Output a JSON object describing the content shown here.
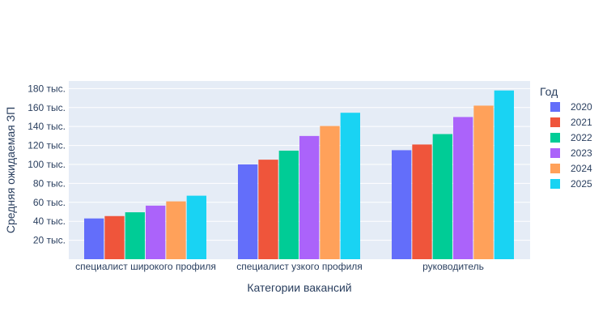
{
  "chart_data": {
    "type": "bar",
    "xlabel": "Категории вакансий",
    "ylabel": "Средняя ожидаемая ЗП",
    "categories": [
      "специалист широкого профиля",
      "специалист узкого профиля",
      "руководитель"
    ],
    "ylim": [
      0,
      188000
    ],
    "yticks": [
      20000,
      40000,
      60000,
      80000,
      100000,
      120000,
      140000,
      160000,
      180000
    ],
    "ytick_labels": [
      "20 тыс.",
      "40 тыс.",
      "60 тыс.",
      "80 тыс.",
      "100 тыс.",
      "120 тыс.",
      "140 тыс.",
      "160 тыс.",
      "180 тыс."
    ],
    "grid": true,
    "legend": {
      "title": "Год",
      "placement": "right"
    },
    "series": [
      {
        "name": "2020",
        "color": "#636efa",
        "values": [
          43000,
          100000,
          115000
        ]
      },
      {
        "name": "2021",
        "color": "#ef553b",
        "values": [
          45500,
          105000,
          121000
        ]
      },
      {
        "name": "2022",
        "color": "#00cc96",
        "values": [
          49500,
          114500,
          132000
        ]
      },
      {
        "name": "2023",
        "color": "#ab63fa",
        "values": [
          56500,
          130000,
          150000
        ]
      },
      {
        "name": "2024",
        "color": "#ffa15a",
        "values": [
          61000,
          140500,
          162000
        ]
      },
      {
        "name": "2025",
        "color": "#19d3f3",
        "values": [
          67000,
          154500,
          178000
        ]
      }
    ]
  }
}
